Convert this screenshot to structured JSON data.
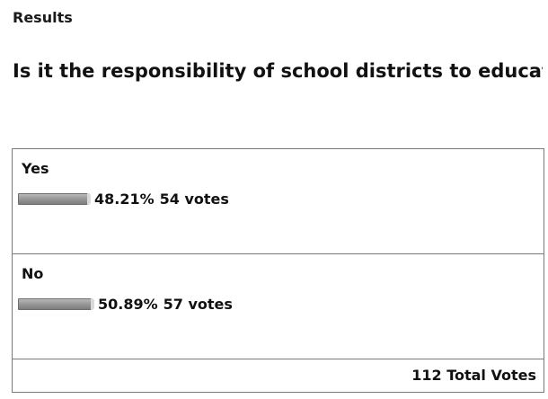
{
  "heading": "Results",
  "question": "Is it the responsibility of school districts to educate parents about gang activity online?",
  "options": [
    {
      "label": "Yes",
      "percent_text": "48.21%",
      "percent": 48.21,
      "votes_text": "54 votes"
    },
    {
      "label": "No",
      "percent_text": "50.89%",
      "percent": 50.89,
      "votes_text": "57 votes"
    }
  ],
  "total_text": "112 Total Votes",
  "colors": {
    "bar": "#9a9a9a",
    "border": "#7a7a7a"
  }
}
